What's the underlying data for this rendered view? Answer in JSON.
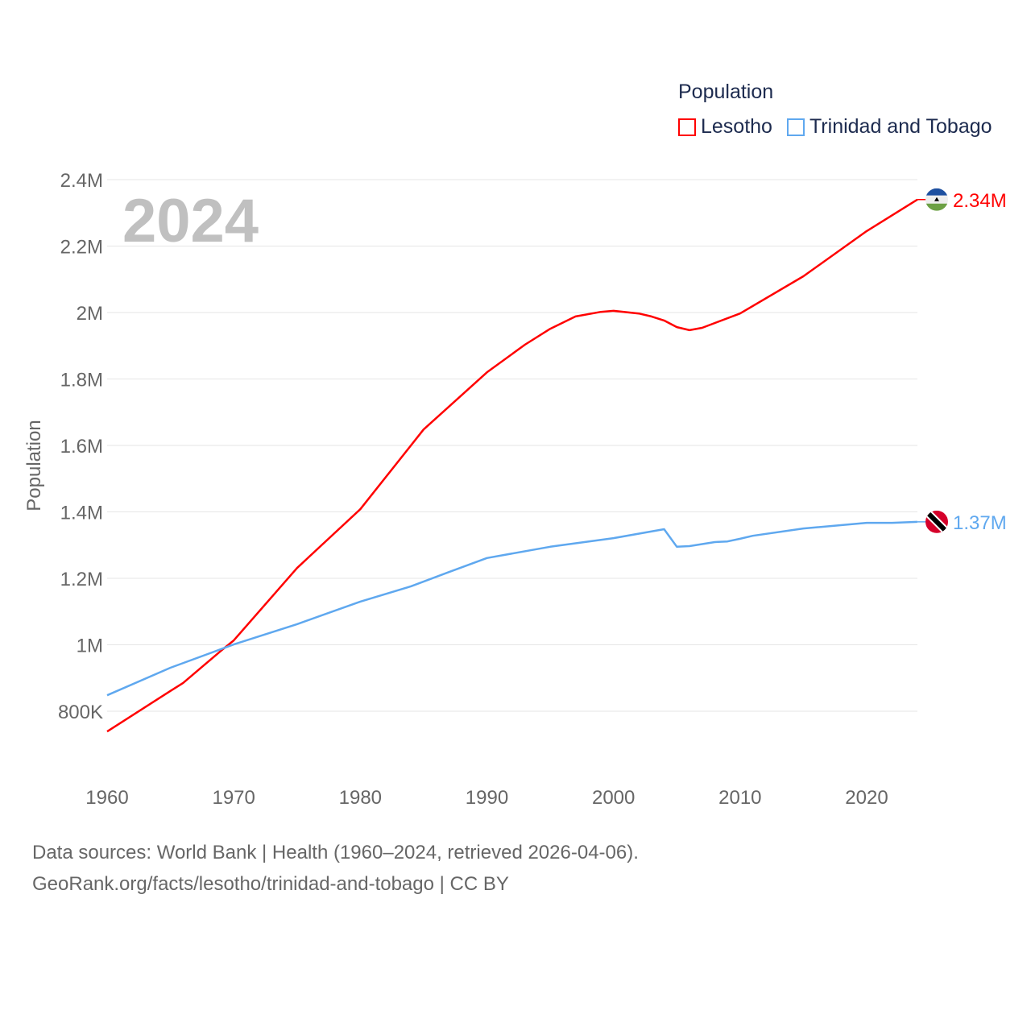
{
  "chart_data": {
    "type": "line",
    "title": "2024",
    "ylabel": "Population",
    "xlabel": "",
    "xlim": [
      1960,
      2024
    ],
    "ylim": [
      600000,
      2400000
    ],
    "x_ticks": [
      1960,
      1970,
      1980,
      1990,
      2000,
      2010,
      2020
    ],
    "x_tick_labels": [
      "1960",
      "1970",
      "1980",
      "1990",
      "2000",
      "2010",
      "2020"
    ],
    "y_ticks": [
      800000,
      1000000,
      1200000,
      1400000,
      1600000,
      1800000,
      2000000,
      2200000,
      2400000
    ],
    "y_tick_labels": [
      "800K",
      "1M",
      "1.2M",
      "1.4M",
      "1.6M",
      "1.8M",
      "2M",
      "2.2M",
      "2.4M"
    ],
    "grid": true,
    "legend_title": "Population",
    "legend_position": "top-right",
    "series": [
      {
        "name": "Lesotho",
        "color": "#ff0000",
        "end_label": "2.34M",
        "flag": "lesotho-flag",
        "points": [
          [
            1960,
            739000
          ],
          [
            1965,
            861000
          ],
          [
            1966,
            885000
          ],
          [
            1969,
            982000
          ],
          [
            1970,
            1013000
          ],
          [
            1975,
            1231000
          ],
          [
            1980,
            1408000
          ],
          [
            1985,
            1648000
          ],
          [
            1990,
            1820000
          ],
          [
            1993,
            1903000
          ],
          [
            1995,
            1951000
          ],
          [
            1997,
            1988000
          ],
          [
            1999,
            2002000
          ],
          [
            2000,
            2005000
          ],
          [
            2002,
            1997000
          ],
          [
            2003,
            1988000
          ],
          [
            2004,
            1976000
          ],
          [
            2005,
            1956000
          ],
          [
            2006,
            1947000
          ],
          [
            2007,
            1954000
          ],
          [
            2010,
            1997000
          ],
          [
            2015,
            2109000
          ],
          [
            2020,
            2245000
          ],
          [
            2024,
            2340000
          ]
        ]
      },
      {
        "name": "Trinidad and Tobago",
        "color": "#5fa8ef",
        "end_label": "1.37M",
        "flag": "trinidad-and-tobago-flag",
        "points": [
          [
            1960,
            848000
          ],
          [
            1965,
            931000
          ],
          [
            1970,
            1001000
          ],
          [
            1975,
            1062000
          ],
          [
            1980,
            1130000
          ],
          [
            1984,
            1176000
          ],
          [
            1987,
            1219000
          ],
          [
            1990,
            1261000
          ],
          [
            1995,
            1295000
          ],
          [
            2000,
            1321000
          ],
          [
            2004,
            1348000
          ],
          [
            2005,
            1295000
          ],
          [
            2006,
            1297000
          ],
          [
            2008,
            1309000
          ],
          [
            2009,
            1311000
          ],
          [
            2010,
            1319000
          ],
          [
            2011,
            1328000
          ],
          [
            2015,
            1350000
          ],
          [
            2020,
            1367000
          ],
          [
            2022,
            1367000
          ],
          [
            2024,
            1370000
          ]
        ]
      }
    ]
  },
  "footer": {
    "line1": "Data sources: World Bank | Health (1960–2024, retrieved 2026-04-06).",
    "line2": "GeoRank.org/facts/lesotho/trinidad-and-tobago | CC BY"
  }
}
